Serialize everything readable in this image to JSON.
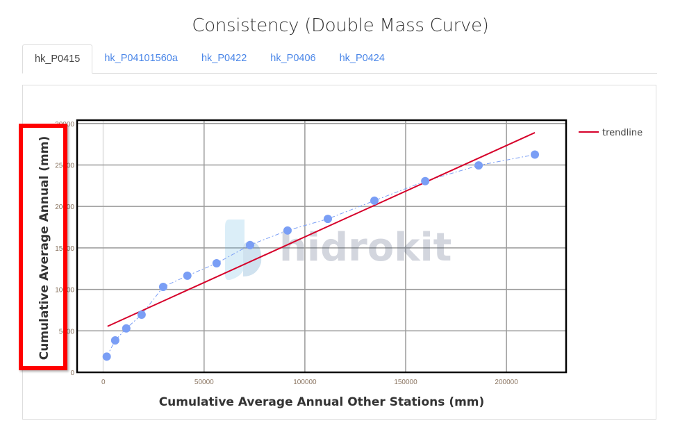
{
  "page": {
    "title": "Consistency (Double Mass Curve)"
  },
  "tabs": [
    {
      "label": "hk_P0415",
      "active": true
    },
    {
      "label": "hk_P04101560a",
      "active": false
    },
    {
      "label": "hk_P0422",
      "active": false
    },
    {
      "label": "hk_P0406",
      "active": false
    },
    {
      "label": "hk_P0424",
      "active": false
    }
  ],
  "watermark": {
    "text": "hidrokit"
  },
  "colors": {
    "points": "#7a9ef5",
    "trendline": "#d6002a",
    "highlight": "#ff0000"
  },
  "chart_data": {
    "type": "scatter",
    "title": "Consistency (Double Mass Curve)",
    "xlabel": "Cumulative Average Annual Other Stations (mm)",
    "ylabel": "Cumulative Average Annual (mm)",
    "xlim": [
      -13000,
      229600
    ],
    "ylim": [
      0,
      30400
    ],
    "xticks": [
      0,
      50000,
      100000,
      150000,
      200000
    ],
    "xtick_labels": [
      "0",
      "50000",
      "100000",
      "150000",
      "200000"
    ],
    "yticks": [
      0,
      5000,
      10000,
      15000,
      20000,
      25000,
      30000
    ],
    "ytick_labels": [
      "0",
      "5000",
      "10000",
      "15000",
      "20000",
      "25000",
      "30000"
    ],
    "grid": true,
    "legend": {
      "entries": [
        "trendline"
      ],
      "placement": "top-right outside"
    },
    "series": [
      {
        "name": "data",
        "style": "markers+dashdot-line",
        "x": [
          1700,
          5900,
          11400,
          19000,
          29700,
          41700,
          56200,
          72800,
          91400,
          111400,
          134500,
          159700,
          186200,
          214100
        ],
        "y": [
          1900,
          3850,
          5300,
          6950,
          10300,
          11650,
          13150,
          15350,
          17100,
          18500,
          20700,
          23050,
          24950,
          26250
        ]
      },
      {
        "name": "trendline",
        "style": "line",
        "x": [
          2100,
          214100
        ],
        "y": [
          5550,
          28900
        ]
      }
    ]
  }
}
